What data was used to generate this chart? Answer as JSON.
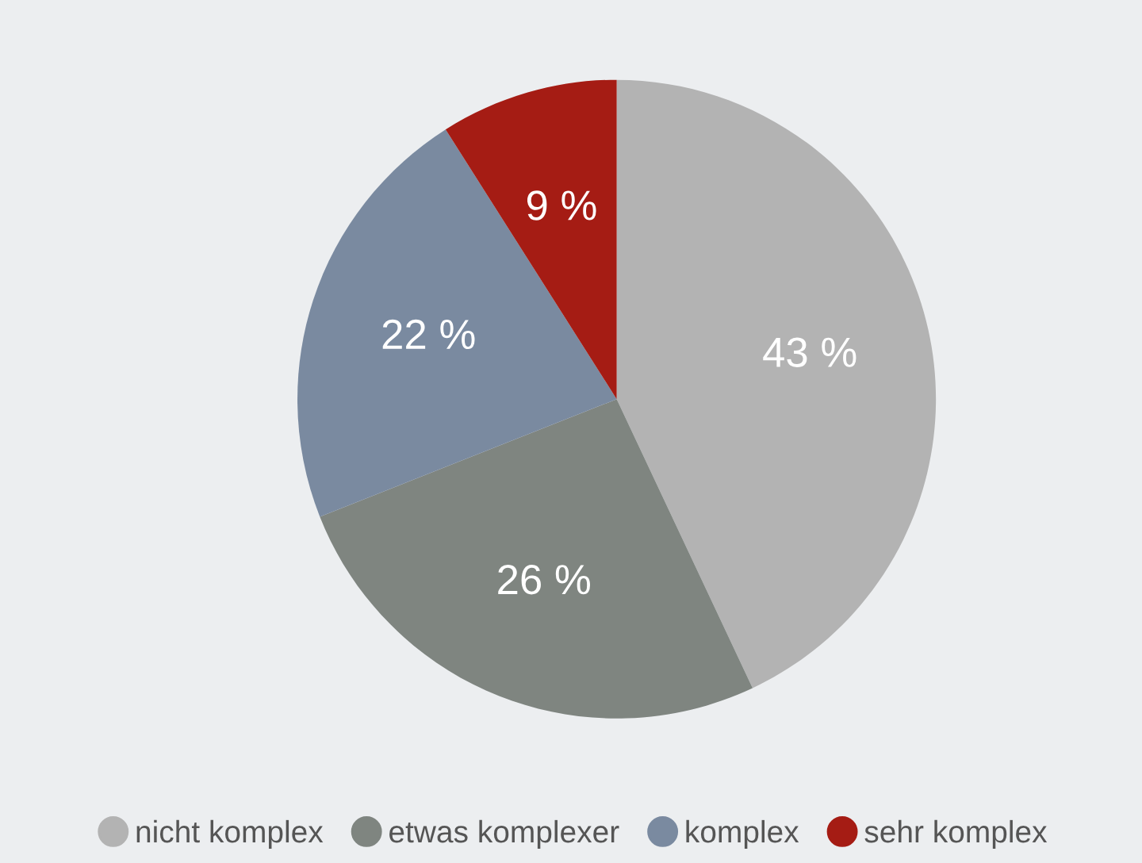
{
  "chart_data": {
    "type": "pie",
    "categories": [
      "nicht komplex",
      "etwas komplexer",
      "komplex",
      "sehr komplex"
    ],
    "values": [
      43,
      26,
      22,
      9
    ],
    "value_labels": [
      "43 %",
      "26 %",
      "22 %",
      "9 %"
    ],
    "colors": [
      "#b3b3b3",
      "#7f8580",
      "#7a8aa0",
      "#a51c14"
    ],
    "legend": "bottom"
  }
}
